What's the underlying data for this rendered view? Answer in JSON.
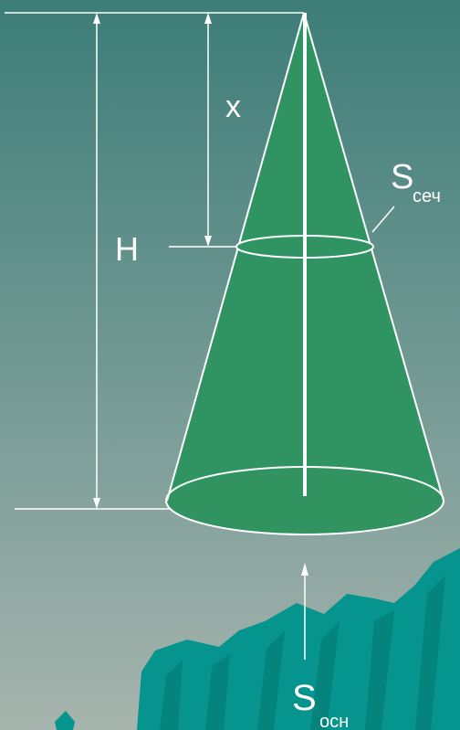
{
  "labels": {
    "x": "x",
    "h": "H",
    "s_section_main": "S",
    "s_section_sub": "сеч",
    "s_base_main": "S",
    "s_base_sub": "осн"
  },
  "colors": {
    "background_top": "#3d7d78",
    "background_bottom": "#a7b4ae",
    "cone_fill": "#2f9462",
    "base_fill": "#31935f",
    "lines": "#ffffff",
    "rock_fill": "#05958e",
    "rock_dark": "#057f79"
  }
}
